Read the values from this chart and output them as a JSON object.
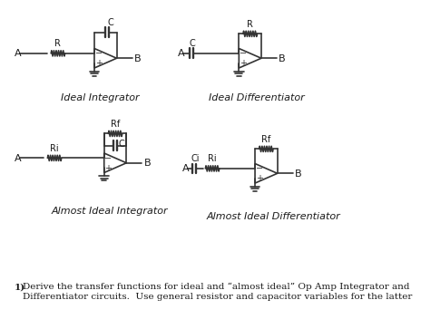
{
  "background_color": "#ffffff",
  "line_color": "#333333",
  "text_color": "#1a1a1a",
  "label_ideal_integrator": "Ideal Integrator",
  "label_ideal_diff": "Ideal Differentiator",
  "label_almost_integrator": "Almost Ideal Integrator",
  "label_almost_diff": "Almost Ideal Differentiator",
  "bottom_text_line1": "1) Derive the transfer functions for ideal and “almost ideal” Op Amp Integrator and",
  "bottom_text_line2": "    Differentiator circuits.  Use general resistor and capacitor variables for the latter"
}
